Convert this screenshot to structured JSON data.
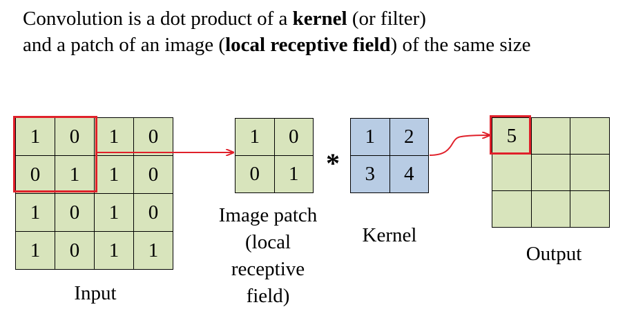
{
  "title": {
    "line1_pre": "Convolution is a dot product of a ",
    "line1_bold": "kernel",
    "line1_post": " (or filter)",
    "line2_pre": "and a patch of an image (",
    "line2_bold": "local receptive field",
    "line2_post": ") of the same size"
  },
  "input": {
    "label": "Input",
    "cells": [
      [
        "1",
        "0",
        "1",
        "0"
      ],
      [
        "0",
        "1",
        "1",
        "0"
      ],
      [
        "1",
        "0",
        "1",
        "0"
      ],
      [
        "1",
        "0",
        "1",
        "1"
      ]
    ]
  },
  "patch": {
    "label_lines": [
      "Image patch",
      "(local",
      "receptive",
      "field)"
    ],
    "cells": [
      [
        "1",
        "0"
      ],
      [
        "0",
        "1"
      ]
    ]
  },
  "operator": "*",
  "kernel": {
    "label": "Kernel",
    "cells": [
      [
        "1",
        "2"
      ],
      [
        "3",
        "4"
      ]
    ]
  },
  "output": {
    "label": "Output",
    "cells": [
      [
        "5",
        "",
        ""
      ],
      [
        "",
        "",
        ""
      ],
      [
        "",
        "",
        ""
      ]
    ]
  },
  "colors": {
    "grid_fill": "#d8e4bc",
    "kernel_fill": "#b8cce4",
    "highlight": "#e0202a"
  }
}
